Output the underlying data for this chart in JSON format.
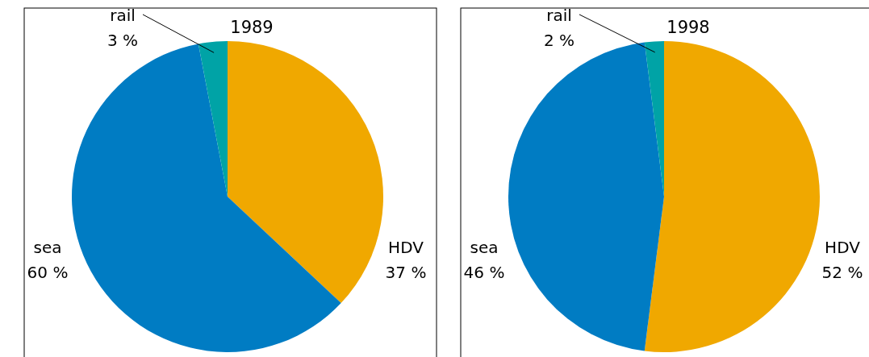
{
  "chart_data": [
    {
      "type": "pie",
      "title": "1989",
      "categories": [
        "HDV",
        "sea",
        "rail"
      ],
      "values": [
        37,
        60,
        3
      ],
      "value_labels": [
        "37 %",
        "60 %",
        "3 %"
      ],
      "colors": [
        "#f0a800",
        "#007cc3",
        "#00a3a6"
      ]
    },
    {
      "type": "pie",
      "title": "1998",
      "categories": [
        "HDV",
        "sea",
        "rail"
      ],
      "values": [
        52,
        46,
        2
      ],
      "value_labels": [
        "52 %",
        "46 %",
        "2 %"
      ],
      "colors": [
        "#f0a800",
        "#007cc3",
        "#00a3a6"
      ]
    }
  ]
}
